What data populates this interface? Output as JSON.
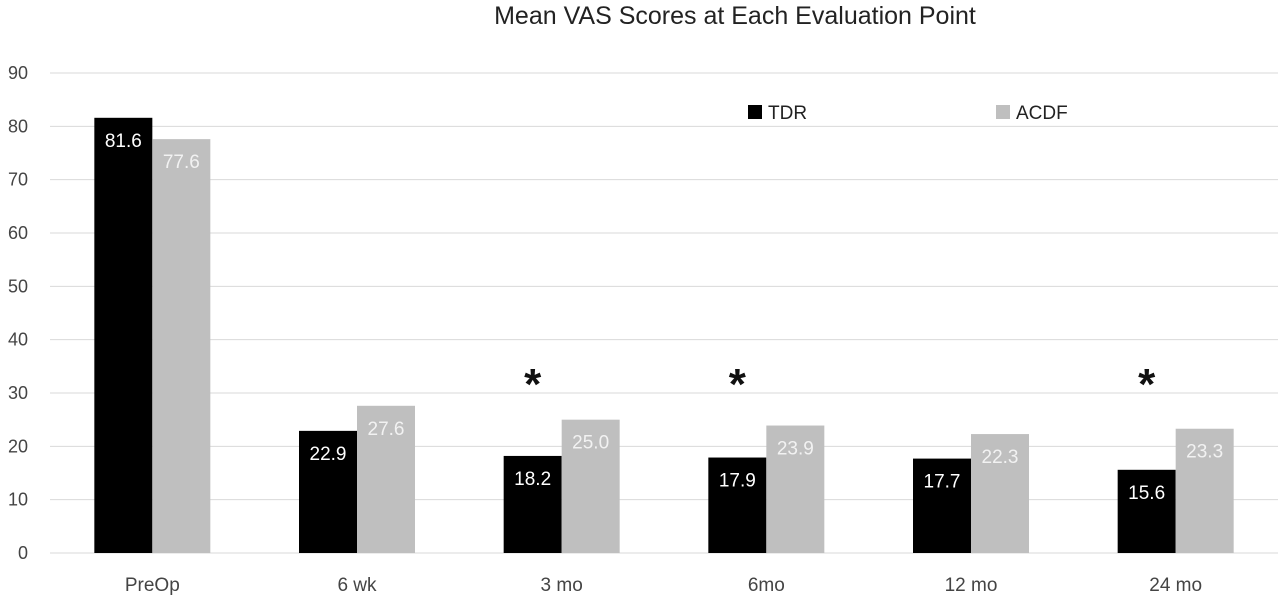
{
  "chart_data": {
    "type": "bar",
    "title": "Mean VAS Scores at Each Evaluation Point",
    "xlabel": "",
    "ylabel": "",
    "ylim": [
      0,
      90
    ],
    "yticks": [
      0,
      10,
      20,
      30,
      40,
      50,
      60,
      70,
      80,
      90
    ],
    "grid": true,
    "legend_position": "top-right",
    "categories": [
      "PreOp",
      "6 wk",
      "3 mo",
      "6mo",
      "12 mo",
      "24 mo"
    ],
    "series": [
      {
        "name": "TDR",
        "color": "#000000",
        "label_color": "#ffffff",
        "values": [
          81.6,
          22.9,
          18.2,
          17.9,
          17.7,
          15.6
        ]
      },
      {
        "name": "ACDF",
        "color": "#bfbfbf",
        "label_color": "#f2f2f2",
        "values": [
          77.6,
          27.6,
          25.0,
          23.9,
          22.3,
          23.3
        ]
      }
    ],
    "annotations": [
      {
        "category": "3 mo",
        "text": "*"
      },
      {
        "category": "6mo",
        "text": "*"
      },
      {
        "category": "24 mo",
        "text": "*"
      }
    ]
  }
}
